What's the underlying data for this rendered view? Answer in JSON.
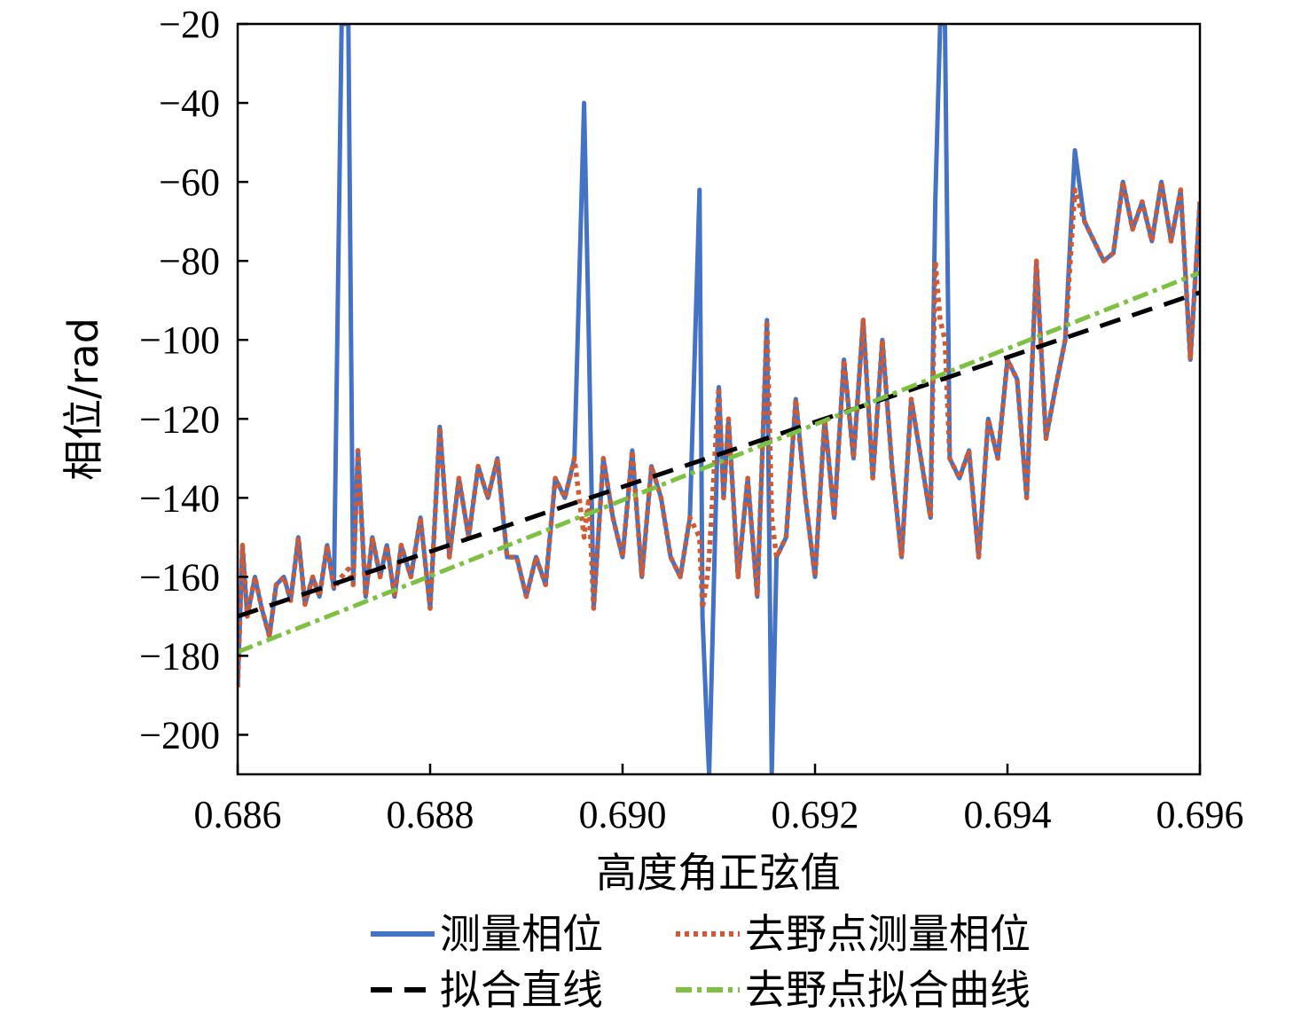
{
  "chart_data": {
    "type": "line",
    "title": "",
    "xlabel": "高度角正弦值",
    "ylabel": "相位/rad",
    "xlim": [
      0.686,
      0.696
    ],
    "ylim": [
      -210,
      -20
    ],
    "xticks": [
      0.686,
      0.688,
      0.69,
      0.692,
      0.694,
      0.696
    ],
    "xtick_labels": [
      "0.686",
      "0.688",
      "0.690",
      "0.692",
      "0.694",
      "0.696"
    ],
    "yticks": [
      -20,
      -40,
      -60,
      -80,
      -100,
      -120,
      -140,
      -160,
      -180,
      -200
    ],
    "ytick_labels": [
      "−20",
      "−40",
      "−60",
      "−80",
      "−100",
      "−120",
      "−140",
      "−160",
      "−180",
      "−200"
    ],
    "grid": false,
    "legend_position": "bottom",
    "series": [
      {
        "name": "测量相位",
        "color": "#4472c4",
        "style": "solid",
        "x": [
          0.686,
          0.68605,
          0.6861,
          0.68618,
          0.68625,
          0.68633,
          0.6864,
          0.68648,
          0.68655,
          0.68663,
          0.6867,
          0.68678,
          0.68685,
          0.68693,
          0.687,
          0.68708,
          0.68715,
          0.6872,
          0.68725,
          0.68733,
          0.6874,
          0.68748,
          0.68755,
          0.68763,
          0.6877,
          0.6878,
          0.6879,
          0.688,
          0.6881,
          0.6882,
          0.6883,
          0.6884,
          0.6885,
          0.6886,
          0.6887,
          0.6888,
          0.6889,
          0.689,
          0.6891,
          0.6892,
          0.6893,
          0.6894,
          0.6895,
          0.6896,
          0.68965,
          0.6897,
          0.6898,
          0.6899,
          0.69,
          0.6901,
          0.6902,
          0.6903,
          0.6904,
          0.6905,
          0.6906,
          0.6907,
          0.6908,
          0.69083,
          0.69088,
          0.6909,
          0.691,
          0.69105,
          0.6911,
          0.6912,
          0.6913,
          0.6914,
          0.6915,
          0.69155,
          0.6916,
          0.6917,
          0.6918,
          0.6919,
          0.692,
          0.6921,
          0.6922,
          0.6923,
          0.6924,
          0.6925,
          0.6926,
          0.6927,
          0.6928,
          0.6929,
          0.693,
          0.6931,
          0.6932,
          0.69325,
          0.6933,
          0.69335,
          0.6934,
          0.6935,
          0.6936,
          0.6937,
          0.6938,
          0.6939,
          0.694,
          0.6941,
          0.6942,
          0.6943,
          0.6944,
          0.6945,
          0.6946,
          0.6947,
          0.6948,
          0.6949,
          0.695,
          0.6951,
          0.6952,
          0.6953,
          0.6954,
          0.6955,
          0.6956,
          0.6957,
          0.6958,
          0.6959,
          0.696
        ],
        "y": [
          -188,
          -152,
          -170,
          -160,
          -168,
          -175,
          -162,
          -160,
          -166,
          -150,
          -167,
          -160,
          -165,
          -152,
          -163,
          -20,
          -20,
          -162,
          -128,
          -165,
          -150,
          -160,
          -152,
          -165,
          -152,
          -160,
          -145,
          -168,
          -122,
          -155,
          -135,
          -150,
          -132,
          -140,
          -130,
          -155,
          -155,
          -165,
          -155,
          -162,
          -135,
          -140,
          -130,
          -40,
          -100,
          -168,
          -130,
          -145,
          -155,
          -128,
          -160,
          -132,
          -140,
          -155,
          -160,
          -145,
          -62,
          -170,
          -200,
          -210,
          -112,
          -140,
          -120,
          -160,
          -135,
          -165,
          -95,
          -210,
          -155,
          -150,
          -115,
          -140,
          -160,
          -120,
          -145,
          -105,
          -130,
          -95,
          -135,
          -100,
          -132,
          -155,
          -115,
          -130,
          -145,
          -65,
          -20,
          -20,
          -130,
          -135,
          -128,
          -155,
          -120,
          -130,
          -105,
          -110,
          -140,
          -80,
          -125,
          -112,
          -100,
          -52,
          -70,
          -75,
          -80,
          -78,
          -60,
          -72,
          -65,
          -75,
          -60,
          -75,
          -62,
          -105,
          -65
        ]
      },
      {
        "name": "去野点测量相位",
        "color": "#d05a33",
        "style": "dotted",
        "x": [
          0.686,
          0.68605,
          0.6861,
          0.68618,
          0.68625,
          0.68633,
          0.6864,
          0.68648,
          0.68655,
          0.68663,
          0.6867,
          0.68678,
          0.68685,
          0.68693,
          0.687,
          0.68708,
          0.68715,
          0.6872,
          0.68725,
          0.68733,
          0.6874,
          0.68748,
          0.68755,
          0.68763,
          0.6877,
          0.6878,
          0.6879,
          0.688,
          0.6881,
          0.6882,
          0.6883,
          0.6884,
          0.6885,
          0.6886,
          0.6887,
          0.6888,
          0.6889,
          0.689,
          0.6891,
          0.6892,
          0.6893,
          0.6894,
          0.6895,
          0.6896,
          0.68965,
          0.6897,
          0.6898,
          0.6899,
          0.69,
          0.6901,
          0.6902,
          0.6903,
          0.6904,
          0.6905,
          0.6906,
          0.6907,
          0.6908,
          0.69083,
          0.69088,
          0.6909,
          0.691,
          0.69105,
          0.6911,
          0.6912,
          0.6913,
          0.6914,
          0.6915,
          0.69155,
          0.6916,
          0.6917,
          0.6918,
          0.6919,
          0.692,
          0.6921,
          0.6922,
          0.6923,
          0.6924,
          0.6925,
          0.6926,
          0.6927,
          0.6928,
          0.6929,
          0.693,
          0.6931,
          0.6932,
          0.69325,
          0.6933,
          0.69335,
          0.6934,
          0.6935,
          0.6936,
          0.6937,
          0.6938,
          0.6939,
          0.694,
          0.6941,
          0.6942,
          0.6943,
          0.6944,
          0.6945,
          0.6946,
          0.6947,
          0.6948,
          0.6949,
          0.695,
          0.6951,
          0.6952,
          0.6953,
          0.6954,
          0.6955,
          0.6956,
          0.6957,
          0.6958,
          0.6959,
          0.696
        ],
        "y": [
          -188,
          -152,
          -170,
          -160,
          -168,
          -175,
          -162,
          -160,
          -166,
          -150,
          -167,
          -160,
          -165,
          -152,
          -163,
          -160,
          -158,
          -162,
          -128,
          -165,
          -150,
          -160,
          -152,
          -165,
          -152,
          -160,
          -145,
          -168,
          -122,
          -155,
          -135,
          -150,
          -132,
          -140,
          -130,
          -155,
          -155,
          -165,
          -155,
          -162,
          -135,
          -140,
          -130,
          -150,
          -140,
          -168,
          -130,
          -145,
          -155,
          -128,
          -160,
          -132,
          -140,
          -155,
          -160,
          -145,
          -150,
          -168,
          -160,
          -155,
          -112,
          -140,
          -120,
          -160,
          -135,
          -165,
          -95,
          -145,
          -155,
          -150,
          -115,
          -140,
          -160,
          -120,
          -145,
          -105,
          -130,
          -95,
          -135,
          -100,
          -132,
          -155,
          -115,
          -130,
          -145,
          -80,
          -95,
          -100,
          -130,
          -135,
          -128,
          -155,
          -120,
          -130,
          -105,
          -110,
          -140,
          -80,
          -125,
          -112,
          -100,
          -62,
          -70,
          -75,
          -80,
          -78,
          -60,
          -72,
          -65,
          -75,
          -60,
          -75,
          -62,
          -105,
          -65
        ]
      },
      {
        "name": "拟合直线",
        "color": "#000000",
        "style": "dashed",
        "x": [
          0.686,
          0.696
        ],
        "y": [
          -170,
          -88
        ]
      },
      {
        "name": "去野点拟合曲线",
        "color": "#7dc142",
        "style": "dashdot",
        "x": [
          0.686,
          0.696
        ],
        "y": [
          -179,
          -83
        ]
      }
    ]
  }
}
